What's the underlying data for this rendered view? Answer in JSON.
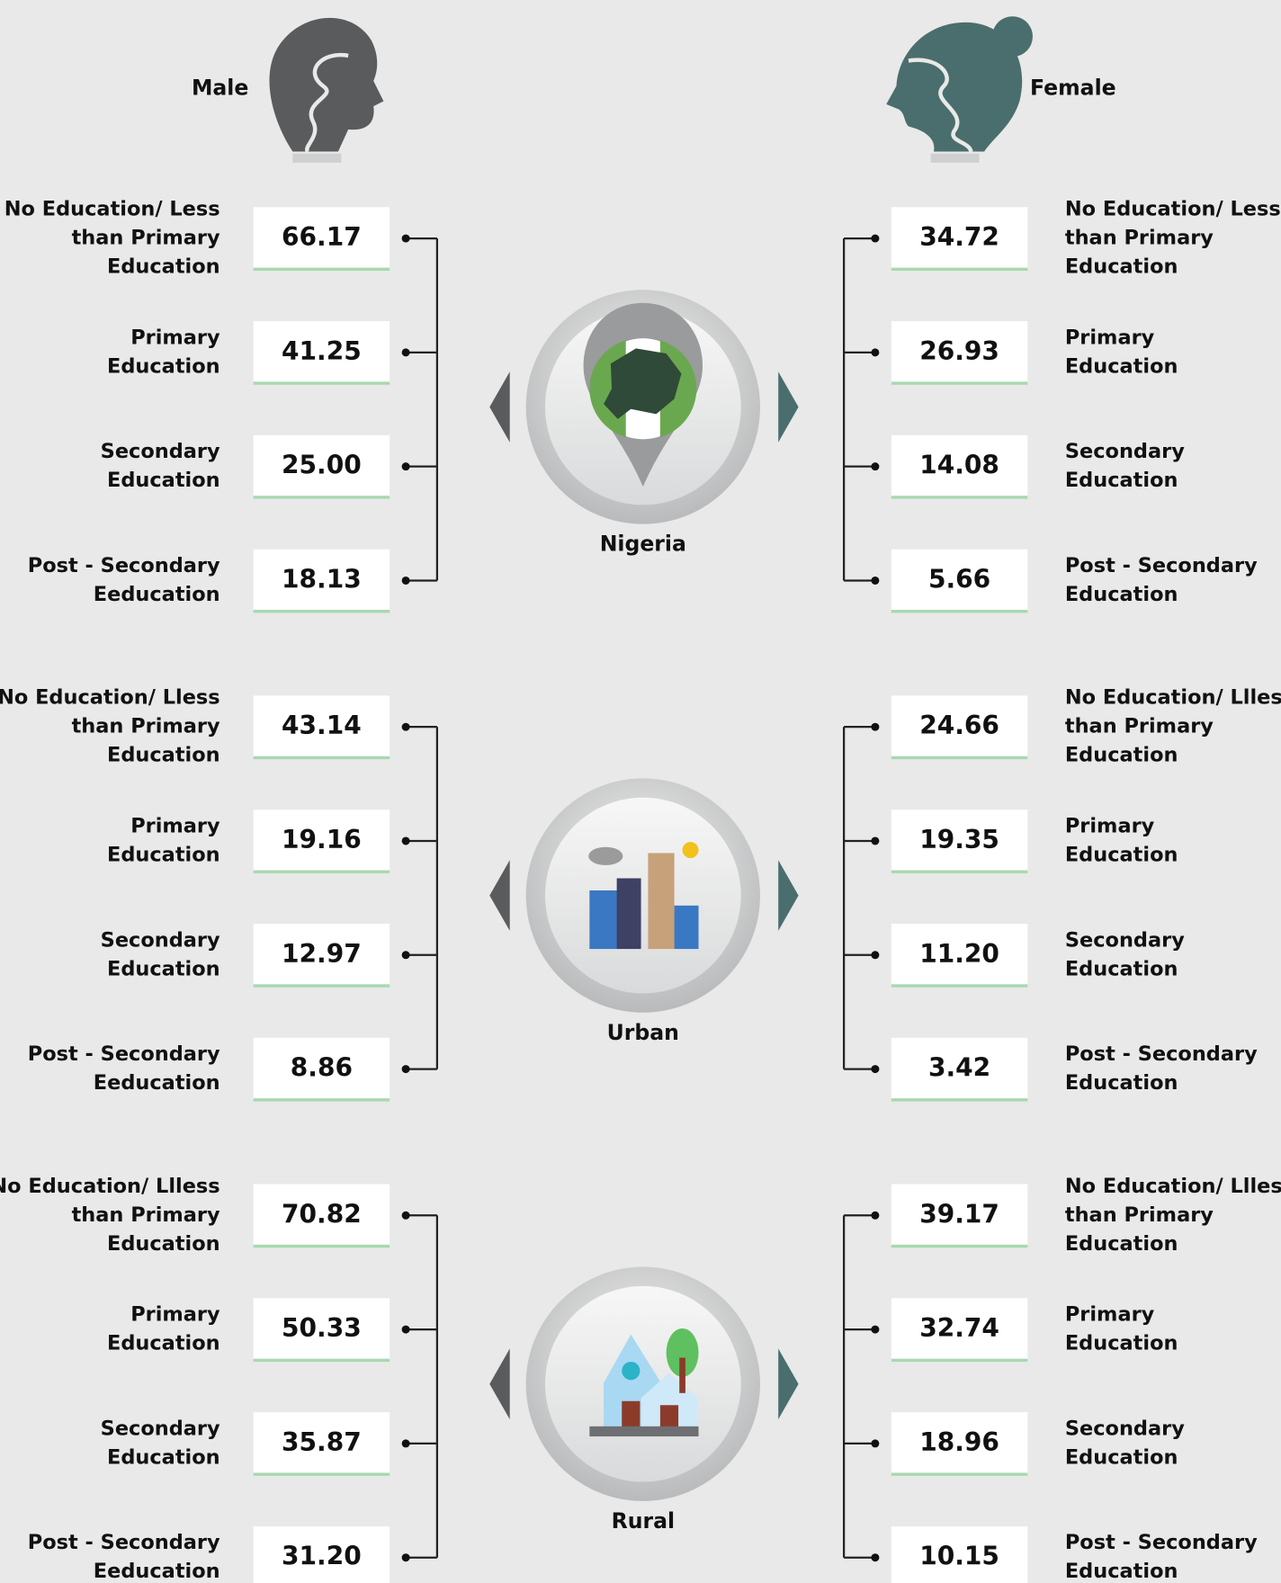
{
  "header": {
    "male": "Male",
    "female": "Female"
  },
  "sections": [
    {
      "name": "Nigeria",
      "male": [
        {
          "label": [
            "No Education/ Less",
            "than Primary",
            "Education"
          ],
          "value": "66.17"
        },
        {
          "label": [
            "Primary",
            "Education"
          ],
          "value": "41.25"
        },
        {
          "label": [
            "Secondary",
            "Education"
          ],
          "value": "25.00"
        },
        {
          "label": [
            "Post - Secondary",
            "Eeducation"
          ],
          "value": "18.13"
        }
      ],
      "female": [
        {
          "label": [
            "No Education/ Less",
            "than Primary",
            "Education"
          ],
          "value": "34.72"
        },
        {
          "label": [
            "Primary",
            "Education"
          ],
          "value": "26.93"
        },
        {
          "label": [
            "Secondary",
            "Education"
          ],
          "value": "14.08"
        },
        {
          "label": [
            "Post - Secondary",
            "Education"
          ],
          "value": "5.66"
        }
      ]
    },
    {
      "name": "Urban",
      "male": [
        {
          "label": [
            "No Education/ Lless",
            "than Primary",
            "Education"
          ],
          "value": "43.14"
        },
        {
          "label": [
            "Primary",
            "Education"
          ],
          "value": "19.16"
        },
        {
          "label": [
            "Secondary",
            "Education"
          ],
          "value": "12.97"
        },
        {
          "label": [
            "Post - Secondary",
            "Eeducation"
          ],
          "value": "8.86"
        }
      ],
      "female": [
        {
          "label": [
            "No Education/ Llless",
            "than Primary",
            "Education"
          ],
          "value": "24.66"
        },
        {
          "label": [
            "Primary",
            "Education"
          ],
          "value": "19.35"
        },
        {
          "label": [
            "Secondary",
            "Education"
          ],
          "value": "11.20"
        },
        {
          "label": [
            "Post - Secondary",
            "Education"
          ],
          "value": "3.42"
        }
      ]
    },
    {
      "name": "Rural",
      "male": [
        {
          "label": [
            "No Education/ Llless",
            "than Primary",
            "Education"
          ],
          "value": "70.82"
        },
        {
          "label": [
            "Primary",
            "Education"
          ],
          "value": "50.33"
        },
        {
          "label": [
            "Secondary",
            "Education"
          ],
          "value": "35.87"
        },
        {
          "label": [
            "Post - Secondary",
            "Eeducation"
          ],
          "value": "31.20"
        }
      ],
      "female": [
        {
          "label": [
            "No Education/ Llless",
            "than Primary",
            "Education"
          ],
          "value": "39.17"
        },
        {
          "label": [
            "Primary",
            "Education"
          ],
          "value": "32.74"
        },
        {
          "label": [
            "Secondary",
            "Education"
          ],
          "value": "18.96"
        },
        {
          "label": [
            "Post - Secondary",
            "Education"
          ],
          "value": "10.15"
        }
      ]
    }
  ]
}
